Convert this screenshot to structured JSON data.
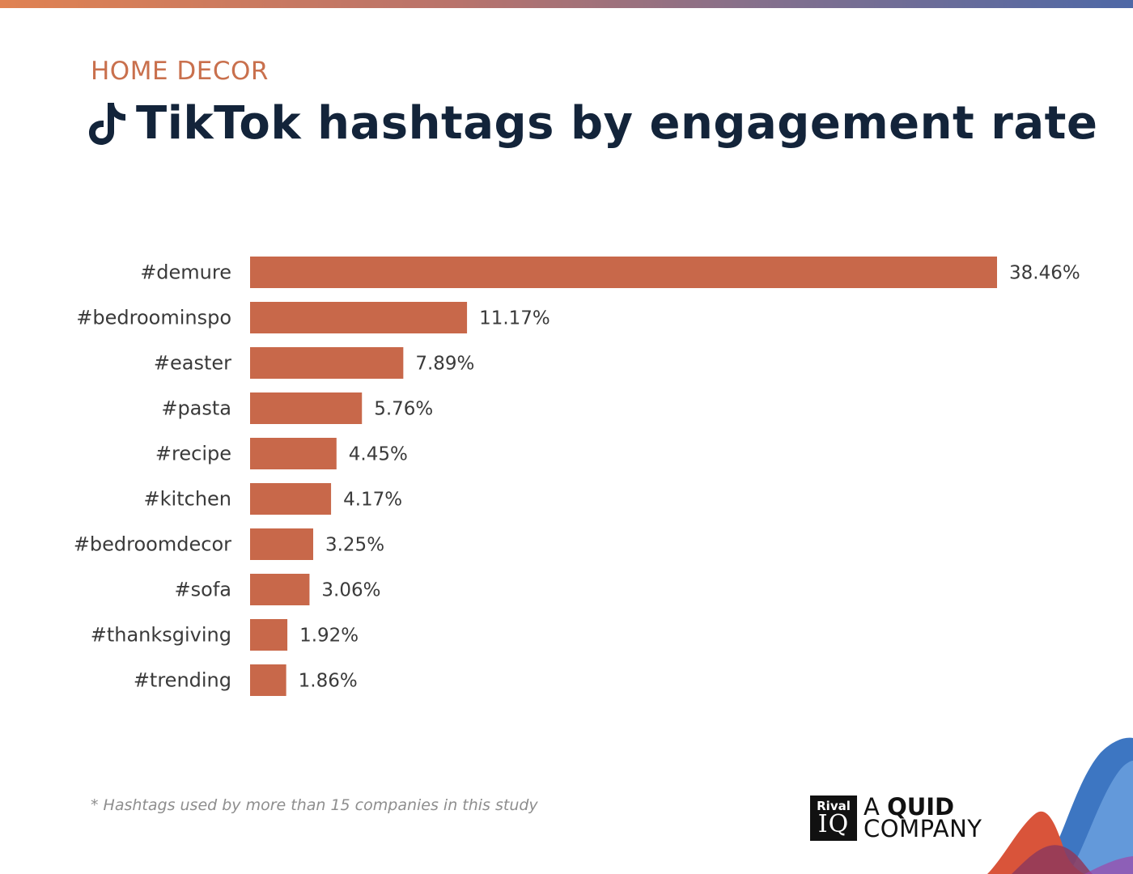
{
  "header": {
    "category": "HOME DECOR",
    "title": "TikTok hashtags by engagement rate"
  },
  "icons": {
    "title_icon": "tiktok-icon"
  },
  "colors": {
    "bar": "#c8684a",
    "title": "#13243a",
    "category": "#c9704d"
  },
  "chart_data": {
    "type": "bar",
    "orientation": "horizontal",
    "categories": [
      "#demure",
      "#bedroominspo",
      "#easter",
      "#pasta",
      "#recipe",
      "#kitchen",
      "#bedroomdecor",
      "#sofa",
      "#thanksgiving",
      "#trending"
    ],
    "values": [
      38.46,
      11.17,
      7.89,
      5.76,
      4.45,
      4.17,
      3.25,
      3.06,
      1.92,
      1.86
    ],
    "value_labels": [
      "38.46%",
      "11.17%",
      "7.89%",
      "5.76%",
      "4.45%",
      "4.17%",
      "3.25%",
      "3.06%",
      "1.92%",
      "1.86%"
    ],
    "xlim": [
      0,
      38.46
    ],
    "grid": false,
    "legend": "none"
  },
  "footnote": "* Hashtags used by more than 15 companies in this study",
  "brand": {
    "logo_top": "Rival",
    "logo_bottom": "IQ",
    "line1_a": "A ",
    "line1_b": "QUID",
    "line2": "COMPANY"
  }
}
